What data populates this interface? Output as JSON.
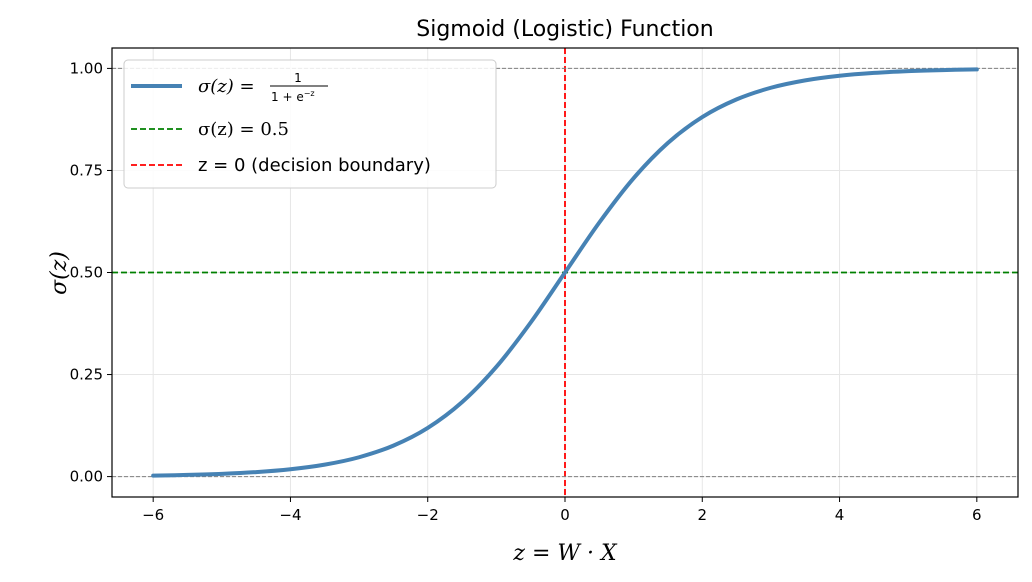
{
  "chart_data": {
    "type": "line",
    "title": "Sigmoid (Logistic) Function",
    "xlabel": "z = W · X",
    "ylabel": "σ(z)",
    "xlim": [
      -6.6,
      6.6
    ],
    "ylim": [
      -0.05,
      1.05
    ],
    "grid": true,
    "legend_placement": "upper-left",
    "xticks": [
      -6,
      -4,
      -2,
      0,
      2,
      4,
      6
    ],
    "xtick_labels": [
      "−6",
      "−4",
      "−2",
      "0",
      "2",
      "4",
      "6"
    ],
    "yticks": [
      0,
      0.25,
      0.5,
      0.75,
      1.0
    ],
    "ytick_labels": [
      "0.00",
      "0.25",
      "0.50",
      "0.75",
      "1.00"
    ],
    "series": [
      {
        "name": "σ(z) = 1 / (1 + e^−z)",
        "legend": {
          "lhs": "σ(z) = ",
          "numerator": "1",
          "denominator": "1 + e",
          "exponent": "−z"
        },
        "color": "#4682b4",
        "style": "solid",
        "x": [
          -6,
          -5.5,
          -5,
          -4.5,
          -4,
          -3.5,
          -3,
          -2.5,
          -2,
          -1.5,
          -1,
          -0.5,
          0,
          0.5,
          1,
          1.5,
          2,
          2.5,
          3,
          3.5,
          4,
          4.5,
          5,
          5.5,
          6
        ],
        "y": [
          0.0025,
          0.0041,
          0.0067,
          0.011,
          0.018,
          0.0293,
          0.0474,
          0.0759,
          0.1192,
          0.1824,
          0.2689,
          0.3775,
          0.5,
          0.6225,
          0.7311,
          0.8176,
          0.8808,
          0.9241,
          0.9526,
          0.9707,
          0.982,
          0.989,
          0.9933,
          0.9959,
          0.9975
        ]
      }
    ],
    "reference_lines": [
      {
        "name": "σ(z) = 0.5",
        "orientation": "horizontal",
        "value": 0.5,
        "color": "#008000",
        "style": "dashed",
        "in_legend": true
      },
      {
        "name": "z = 0 (decision boundary)",
        "orientation": "vertical",
        "value": 0,
        "color": "#ff0000",
        "style": "dashed",
        "in_legend": true
      },
      {
        "orientation": "horizontal",
        "value": 0,
        "color": "#808080",
        "style": "dashed",
        "in_legend": false
      },
      {
        "orientation": "horizontal",
        "value": 1,
        "color": "#808080",
        "style": "dashed",
        "in_legend": false
      }
    ]
  }
}
